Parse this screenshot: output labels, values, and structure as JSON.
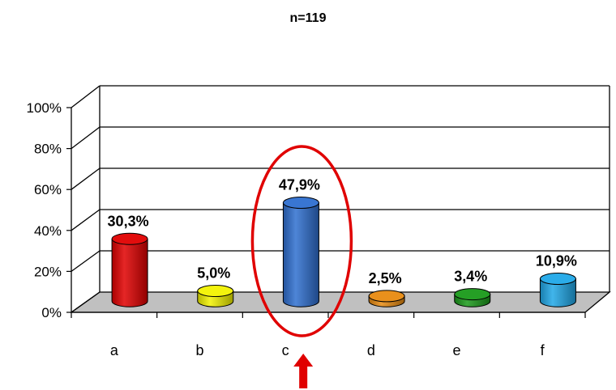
{
  "chart_data": {
    "type": "bar",
    "title": "n=119",
    "categories": [
      "a",
      "b",
      "c",
      "d",
      "e",
      "f"
    ],
    "values": [
      30.3,
      5.0,
      47.9,
      2.5,
      3.4,
      10.9
    ],
    "value_labels": [
      "30,3%",
      "5,0%",
      "47,9%",
      "2,5%",
      "3,4%",
      "10,9%"
    ],
    "colors": [
      "#e00000",
      "#f2f200",
      "#2f6fd0",
      "#e88a10",
      "#1a9a1a",
      "#20a8e8"
    ],
    "y_ticks": [
      "0%",
      "20%",
      "40%",
      "60%",
      "80%",
      "100%"
    ],
    "ylim": [
      0,
      100
    ],
    "grid": true,
    "style": "3d-cylinder",
    "highlight": {
      "category": "c",
      "shape": "ellipse",
      "color": "#e00000",
      "pointer": "arrow-up"
    }
  }
}
